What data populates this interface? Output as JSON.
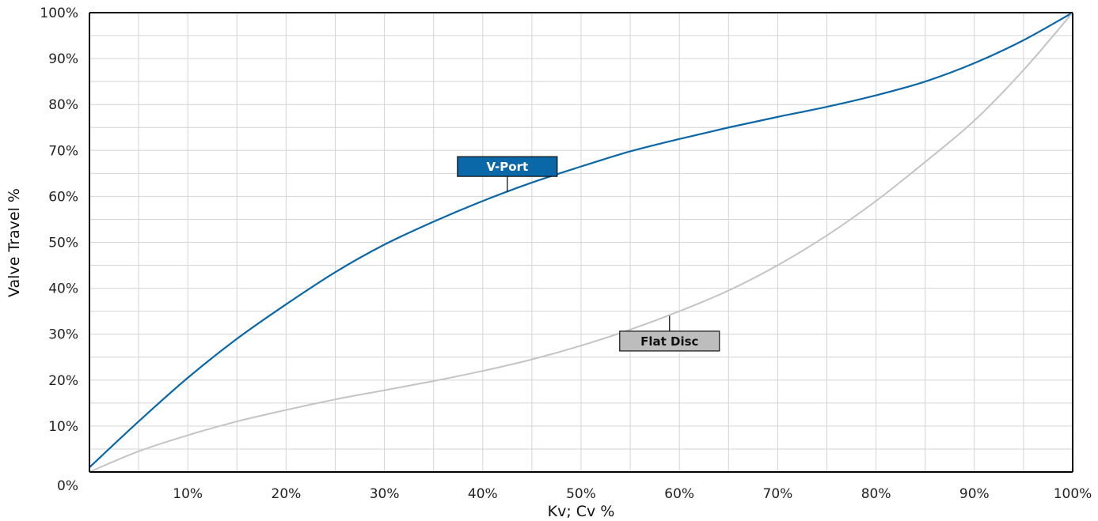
{
  "chart_data": {
    "type": "line",
    "xlabel": "Kv; Cv %",
    "ylabel": "Valve Travel %",
    "xlim": [
      0,
      100
    ],
    "ylim": [
      0,
      100
    ],
    "x_tick_labels": [
      "10%",
      "20%",
      "30%",
      "40%",
      "50%",
      "60%",
      "70%",
      "80%",
      "90%",
      "100%"
    ],
    "y_tick_labels": [
      "0%",
      "10%",
      "20%",
      "30%",
      "40%",
      "50%",
      "60%",
      "70%",
      "80%",
      "90%",
      "100%"
    ],
    "grid": true,
    "series": [
      {
        "name": "V-Port",
        "color": "#0a67a8",
        "x": [
          0,
          5,
          10,
          15,
          20,
          25,
          30,
          35,
          40,
          45,
          50,
          55,
          60,
          65,
          70,
          75,
          80,
          85,
          90,
          95,
          100
        ],
        "y": [
          1,
          11,
          20.5,
          29,
          36.5,
          43.5,
          49.5,
          54.5,
          59,
          63,
          66.5,
          69.8,
          72.5,
          75,
          77.3,
          79.5,
          82,
          85,
          89,
          94,
          100
        ]
      },
      {
        "name": "Flat Disc",
        "color": "#c4c4c4",
        "x": [
          0,
          5,
          10,
          15,
          20,
          25,
          30,
          35,
          40,
          45,
          50,
          55,
          60,
          65,
          70,
          75,
          80,
          85,
          90,
          95,
          100
        ],
        "y": [
          0,
          4.5,
          8,
          11,
          13.5,
          15.8,
          17.8,
          19.8,
          22,
          24.5,
          27.5,
          31,
          35,
          39.5,
          45,
          51.5,
          59,
          67.5,
          76.5,
          87.5,
          100
        ]
      }
    ],
    "annotations": [
      {
        "text": "V-Port",
        "series": "V-Port",
        "bg": "#0a67a8",
        "fg": "#ffffff",
        "x": 42.5,
        "y": 61,
        "box_x": 42.5,
        "box_y": 66.5
      },
      {
        "text": "Flat Disc",
        "series": "Flat Disc",
        "bg": "#bdbdbd",
        "fg": "#111111",
        "x": 59,
        "y": 34,
        "box_x": 59,
        "box_y": 28.5
      }
    ]
  }
}
